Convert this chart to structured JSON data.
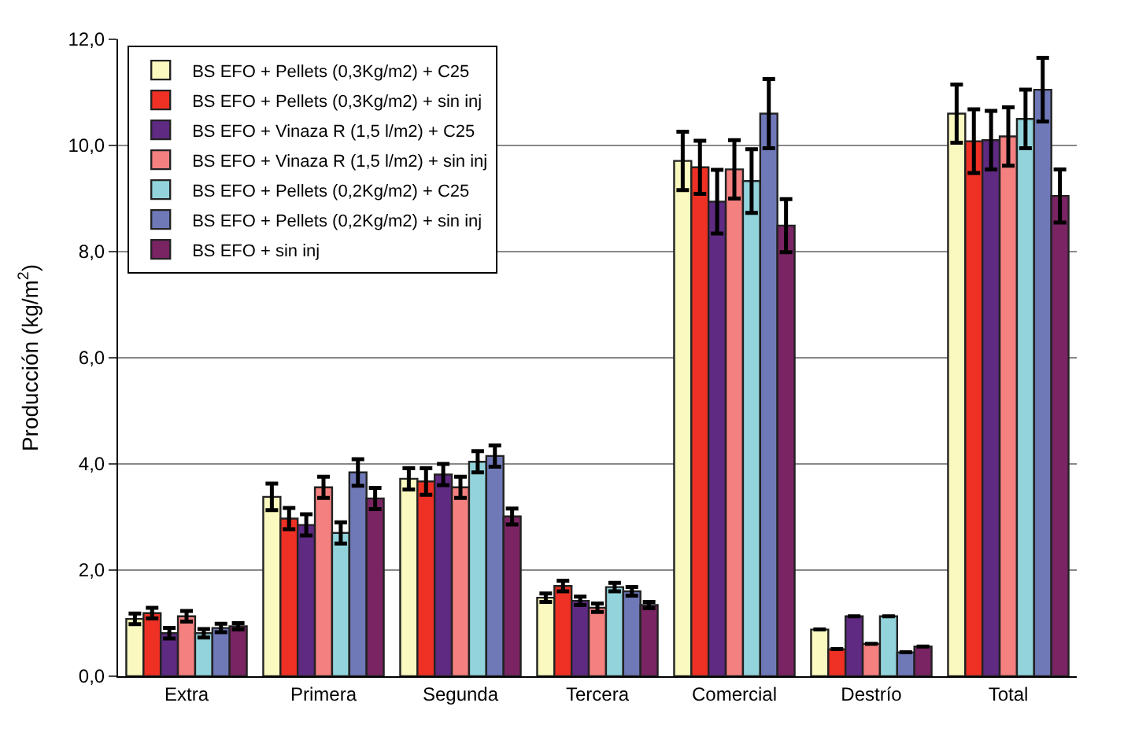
{
  "chart_data": {
    "type": "bar",
    "ylabel": "Producción (kg/m$^{2}$)",
    "categories": [
      "Extra",
      "Primera",
      "Segunda",
      "Tercera",
      "Comercial",
      "Destrío",
      "Total"
    ],
    "series": [
      {
        "name": "BS EFO + Pellets (0,3Kg/m2) + C25",
        "color": "#fafac0",
        "values": [
          1.08,
          3.38,
          3.72,
          1.48,
          9.71,
          0.88,
          10.6
        ],
        "errors": [
          0.1,
          0.25,
          0.2,
          0.08,
          0.55,
          null,
          0.55
        ]
      },
      {
        "name": "BS EFO + Pellets (0,3Kg/m2) + sin inj",
        "color": "#ee3124",
        "values": [
          1.19,
          2.97,
          3.67,
          1.7,
          9.59,
          0.51,
          10.08
        ],
        "errors": [
          0.1,
          0.2,
          0.25,
          0.1,
          0.5,
          null,
          0.6
        ]
      },
      {
        "name": "BS EFO + Vinaza R (1,5 l/m2) + C25",
        "color": "#5f2a82",
        "values": [
          0.81,
          2.85,
          3.8,
          1.42,
          8.94,
          1.13,
          10.1
        ],
        "errors": [
          0.1,
          0.2,
          0.2,
          0.08,
          0.6,
          null,
          0.55
        ]
      },
      {
        "name": "BS EFO + Vinaza R (1,5 l/m2) + sin inj",
        "color": "#f48080",
        "values": [
          1.13,
          3.56,
          3.56,
          1.29,
          9.55,
          0.61,
          10.17
        ],
        "errors": [
          0.1,
          0.2,
          0.2,
          0.08,
          0.55,
          null,
          0.55
        ]
      },
      {
        "name": "BS EFO + Pellets (0,2Kg/m2) + C25",
        "color": "#93d4dc",
        "values": [
          0.81,
          2.7,
          4.04,
          1.68,
          9.33,
          1.13,
          10.5
        ],
        "errors": [
          0.08,
          0.2,
          0.2,
          0.08,
          0.6,
          null,
          0.55
        ]
      },
      {
        "name": "BS EFO + Pellets (0,2Kg/m2) + sin inj",
        "color": "#7079b8",
        "values": [
          0.91,
          3.84,
          4.15,
          1.6,
          10.6,
          0.45,
          11.05
        ],
        "errors": [
          0.08,
          0.25,
          0.2,
          0.08,
          0.65,
          null,
          0.6
        ]
      },
      {
        "name": "BS EFO + sin inj",
        "color": "#7a2463",
        "values": [
          0.94,
          3.35,
          3.01,
          1.34,
          8.49,
          0.56,
          9.05
        ],
        "errors": [
          0.06,
          0.2,
          0.15,
          0.06,
          0.5,
          null,
          0.5
        ]
      }
    ],
    "ylim": [
      0,
      12
    ],
    "yticks": [
      {
        "value": 0,
        "label": "0,0"
      },
      {
        "value": 2,
        "label": "2,0"
      },
      {
        "value": 4,
        "label": "4,0"
      },
      {
        "value": 6,
        "label": "6,0"
      },
      {
        "value": 8,
        "label": "8,0"
      },
      {
        "value": 10,
        "label": "10,0"
      },
      {
        "value": 12,
        "label": "12,0"
      }
    ],
    "grid": "y",
    "legend": "top left"
  }
}
